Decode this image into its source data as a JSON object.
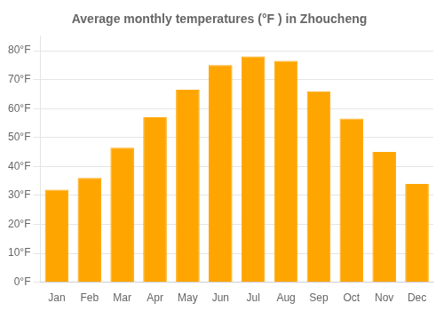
{
  "chart_data": {
    "type": "bar",
    "title": "Average monthly temperatures (°F ) in Zhoucheng",
    "categories": [
      "Jan",
      "Feb",
      "Mar",
      "Apr",
      "May",
      "Jun",
      "Jul",
      "Aug",
      "Sep",
      "Oct",
      "Nov",
      "Dec"
    ],
    "values": [
      32,
      36,
      46.5,
      57,
      66.5,
      75,
      78,
      76.5,
      66,
      56.5,
      45,
      34
    ],
    "color": "#FFA500",
    "ylim": [
      0,
      85
    ],
    "yticks": [
      {
        "value": 0,
        "label": "0°F"
      },
      {
        "value": 10,
        "label": "10°F"
      },
      {
        "value": 20,
        "label": "20°F"
      },
      {
        "value": 30,
        "label": "30°F"
      },
      {
        "value": 40,
        "label": "40°F"
      },
      {
        "value": 50,
        "label": "50°F"
      },
      {
        "value": 60,
        "label": "60°F"
      },
      {
        "value": 70,
        "label": "70°F"
      },
      {
        "value": 80,
        "label": "80°F"
      }
    ],
    "grid": true
  }
}
